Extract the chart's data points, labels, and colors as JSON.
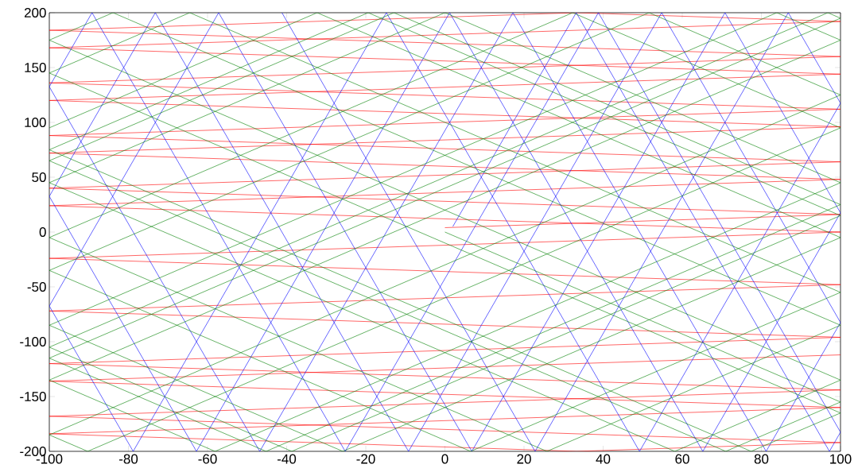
{
  "chart_data": {
    "type": "line",
    "xlim": [
      -100,
      100
    ],
    "ylim": [
      -200,
      200
    ],
    "xticks": [
      -100,
      -80,
      -60,
      -40,
      -20,
      0,
      20,
      40,
      60,
      80,
      100
    ],
    "yticks": [
      -200,
      -150,
      -100,
      -50,
      0,
      50,
      100,
      150,
      200
    ],
    "series": [
      {
        "color": "#ff0000",
        "x": [
          0,
          100,
          -100,
          100,
          -100,
          100,
          -100,
          100,
          -100,
          33.3,
          100,
          -100,
          100,
          -100,
          100,
          -100,
          100,
          -100,
          100,
          -100,
          100,
          -100,
          100,
          -100,
          100,
          -100,
          100,
          33.3,
          -100,
          100,
          -100,
          100
        ],
        "values": [
          4,
          16,
          40,
          64,
          88,
          112,
          136,
          160,
          184,
          200,
          192,
          168,
          144,
          120,
          96,
          72,
          48,
          24,
          0,
          -24,
          -48,
          -72,
          -96,
          -120,
          -144,
          -168,
          -192,
          -200,
          -184,
          -160,
          -136,
          -112
        ]
      },
      {
        "color": "#0000ff",
        "x": [
          2,
          33.2,
          97.2,
          100,
          38.8,
          -25.2,
          -89.2,
          -100,
          -46.8,
          17.2,
          81.2,
          100,
          54.8,
          -9.2,
          -73.2,
          -100,
          -62.8,
          1.2,
          65.2,
          100,
          70.8,
          6.8,
          -57.2,
          -100,
          -78.8,
          -14.8,
          49.2,
          100,
          86.8,
          22.8,
          -41.2
        ],
        "values": [
          5,
          200,
          -200,
          -182.5,
          200,
          -200,
          200,
          132.5,
          -200,
          200,
          -200,
          -82.5,
          200,
          -200,
          200,
          32.5,
          -200,
          200,
          -200,
          17.5,
          200,
          -200,
          200,
          -67.5,
          -200,
          200,
          -200,
          117.5,
          200,
          -200,
          200
        ]
      },
      {
        "color": "#008000",
        "x": [
          0,
          100,
          71,
          -100,
          -12.9,
          100,
          -45.2,
          -100,
          100,
          96.8,
          -100,
          -38.7,
          100,
          -19.4,
          -100,
          77.4,
          100,
          -100,
          -64.5,
          100,
          6.5,
          -100,
          51.6,
          100,
          -100,
          -90.3,
          100,
          32.3,
          -100,
          25.8,
          100,
          -83.9,
          -100,
          100,
          58.1,
          -100,
          0,
          100,
          -58.1,
          -100,
          100,
          83.9,
          -100,
          -25.8,
          100,
          -32.3,
          -100
        ],
        "values": [
          0,
          -155,
          -200,
          65,
          200,
          25,
          -200,
          -115,
          195,
          200,
          -105,
          -200,
          15,
          200,
          75,
          -200,
          -165,
          145,
          200,
          -55,
          -200,
          -35,
          200,
          125,
          -185,
          -200,
          95,
          200,
          -5,
          -200,
          -85,
          200,
          175,
          -135,
          -200,
          45,
          200,
          45,
          -200,
          -135,
          175,
          200,
          -85,
          -200,
          -5,
          200,
          95
        ]
      }
    ]
  }
}
